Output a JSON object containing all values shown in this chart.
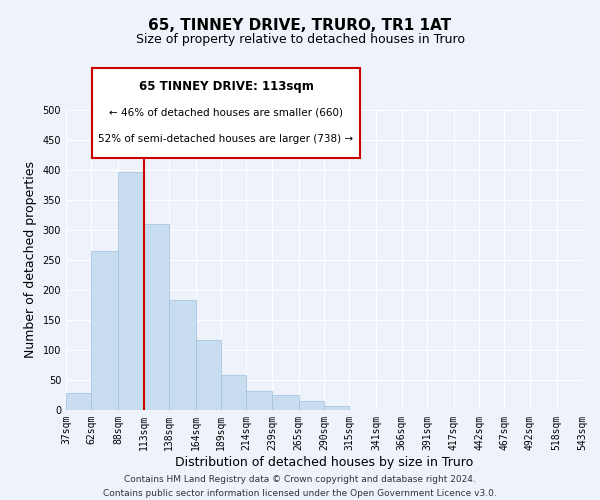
{
  "title": "65, TINNEY DRIVE, TRURO, TR1 1AT",
  "subtitle": "Size of property relative to detached houses in Truro",
  "xlabel": "Distribution of detached houses by size in Truro",
  "ylabel": "Number of detached properties",
  "footer_lines": [
    "Contains HM Land Registry data © Crown copyright and database right 2024.",
    "Contains public sector information licensed under the Open Government Licence v3.0."
  ],
  "bar_edges": [
    37,
    62,
    88,
    113,
    138,
    164,
    189,
    214,
    239,
    265,
    290,
    315,
    341,
    366,
    391,
    417,
    442,
    467,
    492,
    518,
    543
  ],
  "bar_heights": [
    29,
    265,
    397,
    310,
    183,
    117,
    58,
    31,
    25,
    15,
    6,
    0,
    0,
    0,
    0,
    0,
    0,
    0,
    0,
    0,
    2
  ],
  "bar_color": "#c8ddf0",
  "bar_edgecolor": "#a0c0dc",
  "vline_x": 113,
  "vline_color": "#cc0000",
  "annotation_title": "65 TINNEY DRIVE: 113sqm",
  "annotation_line1": "← 46% of detached houses are smaller (660)",
  "annotation_line2": "52% of semi-detached houses are larger (738) →",
  "annotation_box_color": "#cc0000",
  "annotation_fill_color": "#ffffff",
  "tick_labels": [
    "37sqm",
    "62sqm",
    "88sqm",
    "113sqm",
    "138sqm",
    "164sqm",
    "189sqm",
    "214sqm",
    "239sqm",
    "265sqm",
    "290sqm",
    "315sqm",
    "341sqm",
    "366sqm",
    "391sqm",
    "417sqm",
    "442sqm",
    "467sqm",
    "492sqm",
    "518sqm",
    "543sqm"
  ],
  "ylim": [
    0,
    500
  ],
  "yticks": [
    0,
    50,
    100,
    150,
    200,
    250,
    300,
    350,
    400,
    450,
    500
  ],
  "background_color": "#eef2fa",
  "grid_color": "#ffffff",
  "title_fontsize": 11,
  "subtitle_fontsize": 9,
  "axis_label_fontsize": 9,
  "tick_fontsize": 7,
  "annotation_title_fontsize": 8.5,
  "annotation_text_fontsize": 7.5,
  "footer_fontsize": 6.5
}
